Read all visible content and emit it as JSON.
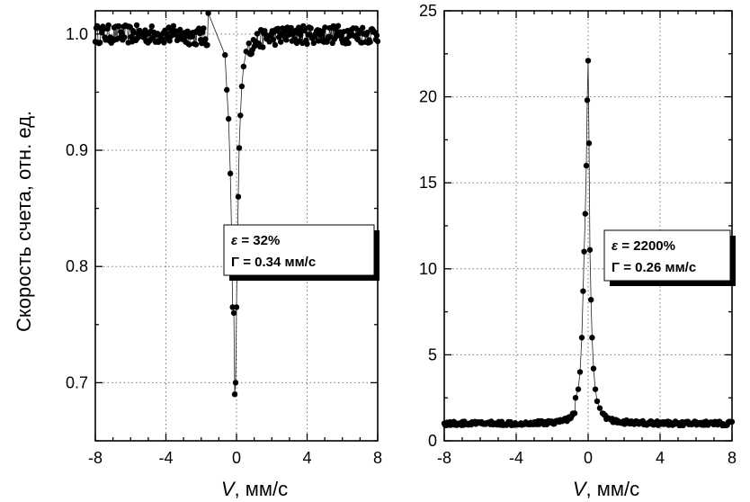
{
  "chart_data": [
    {
      "type": "scatter",
      "xlabel_italic": "V",
      "xlabel_rest": ", мм/с",
      "ylabel": "Скорость счета, отн. ед.",
      "xlim": [
        -8,
        8
      ],
      "ylim": [
        0.65,
        1.02
      ],
      "xticks": [
        -8,
        -4,
        0,
        4,
        8
      ],
      "xtick_labels": [
        "-8",
        "-4",
        "0",
        "4",
        "8"
      ],
      "yticks": [
        0.7,
        0.8,
        0.9,
        1.0
      ],
      "ytick_labels": [
        "0.7",
        "0.8",
        "0.9",
        "1.0"
      ],
      "grid": true,
      "annotation": {
        "line1_symbol": "ε",
        "line1_rest": " = 32%",
        "line2_symbol": "Γ",
        "line2_rest": " = 0.34 мм/с"
      },
      "dip": {
        "center": -0.05,
        "baseline": 1.0,
        "depth": 0.31,
        "hwhm": 0.17,
        "wing_amplitude": 0.0,
        "noise": 0.008
      },
      "series": [
        {
          "x": [
            -1.6,
            -0.65,
            -0.55,
            -0.45,
            -0.35,
            -0.28,
            -0.22,
            -0.15,
            -0.1,
            -0.05,
            0.0,
            0.05,
            0.1,
            0.15,
            0.22,
            0.3,
            0.4,
            0.55,
            0.7
          ],
          "y": [
            1.018,
            0.982,
            0.952,
            0.927,
            0.88,
            0.83,
            0.765,
            0.76,
            0.69,
            0.7,
            0.765,
            0.82,
            0.86,
            0.902,
            0.93,
            0.955,
            0.972,
            0.985,
            0.992
          ]
        }
      ]
    },
    {
      "type": "scatter",
      "xlabel_italic": "V",
      "xlabel_rest": ", мм/с",
      "ylabel": "",
      "xlim": [
        -8,
        8
      ],
      "ylim": [
        0,
        25
      ],
      "xticks": [
        -8,
        -4,
        0,
        4,
        8
      ],
      "xtick_labels": [
        "-8",
        "-4",
        "0",
        "4",
        "8"
      ],
      "yticks": [
        0,
        5,
        10,
        15,
        20,
        25
      ],
      "ytick_labels": [
        "0",
        "5",
        "10",
        "15",
        "20",
        "25"
      ],
      "grid": true,
      "annotation": {
        "line1_symbol": "ε",
        "line1_rest": " = 2200%",
        "line2_symbol": "Γ",
        "line2_rest": " = 0.26 мм/с"
      },
      "peak": {
        "center": 0.0,
        "baseline": 1.0,
        "height": 21.2,
        "hwhm": 0.13,
        "noise": 0.12
      },
      "series": [
        {
          "x": [
            -0.7,
            -0.55,
            -0.45,
            -0.35,
            -0.28,
            -0.22,
            -0.16,
            -0.1,
            -0.05,
            0.0,
            0.05,
            0.1,
            0.16,
            0.22,
            0.3,
            0.4,
            0.5,
            0.65,
            0.8
          ],
          "y": [
            2.5,
            3.0,
            4.0,
            6.0,
            8.7,
            11.0,
            13.2,
            16.0,
            19.8,
            22.1,
            17.3,
            11.1,
            8.2,
            6.0,
            4.2,
            3.0,
            2.3,
            1.9,
            1.6
          ]
        }
      ]
    }
  ]
}
